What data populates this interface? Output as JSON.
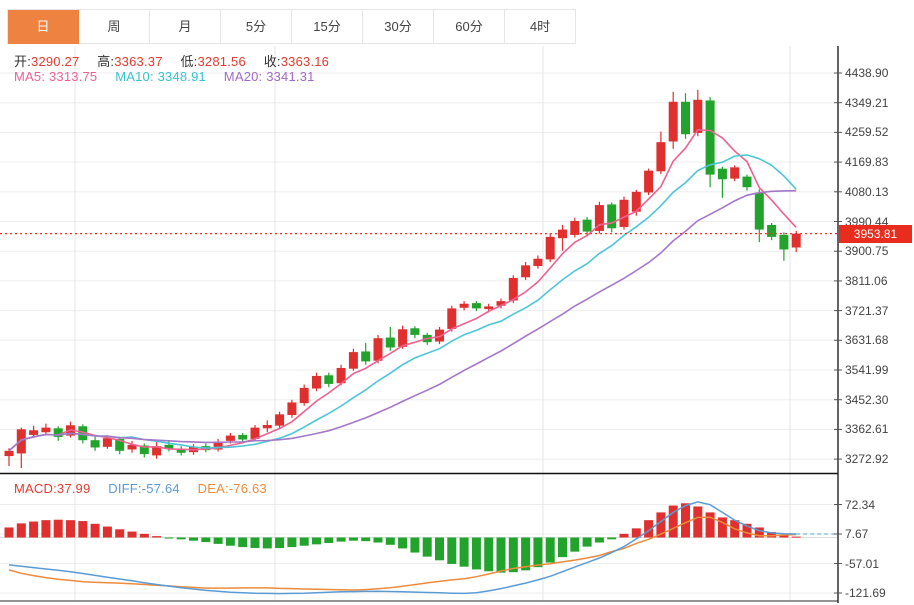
{
  "tabs": {
    "items": [
      {
        "label": "日",
        "active": true
      },
      {
        "label": "周",
        "active": false
      },
      {
        "label": "月",
        "active": false
      },
      {
        "label": "5分",
        "active": false
      },
      {
        "label": "15分",
        "active": false
      },
      {
        "label": "30分",
        "active": false
      },
      {
        "label": "60分",
        "active": false
      },
      {
        "label": "4时",
        "active": false
      }
    ]
  },
  "main_overlay": {
    "open_label": "开:",
    "open": "3290.27",
    "high_label": "高:",
    "high": "3363.37",
    "low_label": "低:",
    "low": "3281.56",
    "close_label": "收:",
    "close": "3363.16"
  },
  "ma_overlay": {
    "ma5_label": "MA5:",
    "ma5": "3313.75",
    "ma10_label": "MA10:",
    "ma10": "3348.91",
    "ma20_label": "MA20:",
    "ma20": "3341.31"
  },
  "macd_overlay": {
    "macd_label": "MACD:",
    "macd": "37.99",
    "diff_label": "DIFF:",
    "diff": "-57.64",
    "dea_label": "DEA:",
    "dea": "-76.63"
  },
  "price_axis": {
    "labels": [
      "4438.90",
      "4349.21",
      "4259.52",
      "4169.83",
      "4080.13",
      "3990.44",
      "3900.75",
      "3811.06",
      "3721.37",
      "3631.68",
      "3541.99",
      "3452.30",
      "3362.61",
      "3272.92"
    ]
  },
  "macd_axis": {
    "labels": [
      "72.34",
      "7.67",
      "-57.01",
      "-121.69"
    ]
  },
  "price_line": {
    "value": "3953.81"
  },
  "colors": {
    "up": "#df2f2f",
    "down": "#22a42c",
    "ma5": "#ec6390",
    "ma10": "#4cc6d8",
    "ma20": "#a577c8",
    "diff": "#5b9bd5",
    "dea": "#ed8b3a",
    "diff_dash": "#6db9e0",
    "price_line": "#ff2a2a",
    "badge_bg": "#e82c1e",
    "grid": "#ededed",
    "vgrid": "#e4e4e4",
    "axis": "#222",
    "tab_active": "#ee8240"
  },
  "chart_data": {
    "type": "candlestick+macd",
    "note": "65 daily candles, values estimated from pixels; red=up green=down (CN convention)",
    "price_ticks": [
      4438.9,
      4349.21,
      4259.52,
      4169.83,
      4080.13,
      3990.44,
      3900.75,
      3811.06,
      3721.37,
      3631.68,
      3541.99,
      3452.3,
      3362.61,
      3272.92
    ],
    "macd_ticks": [
      72.34,
      7.67,
      -57.01,
      -121.69
    ],
    "last_price": 3953.81,
    "ma_periods": [
      5,
      10,
      20
    ],
    "ohlc": [
      [
        3282,
        3306,
        3252,
        3298
      ],
      [
        3290,
        3368,
        3246,
        3363
      ],
      [
        3346,
        3374,
        3336,
        3360
      ],
      [
        3354,
        3380,
        3344,
        3368
      ],
      [
        3366,
        3372,
        3328,
        3340
      ],
      [
        3344,
        3386,
        3338,
        3375
      ],
      [
        3372,
        3378,
        3320,
        3330
      ],
      [
        3330,
        3342,
        3298,
        3308
      ],
      [
        3310,
        3345,
        3304,
        3336
      ],
      [
        3334,
        3340,
        3288,
        3298
      ],
      [
        3302,
        3328,
        3292,
        3316
      ],
      [
        3314,
        3320,
        3278,
        3288
      ],
      [
        3284,
        3324,
        3274,
        3312
      ],
      [
        3316,
        3328,
        3296,
        3304
      ],
      [
        3304,
        3312,
        3284,
        3292
      ],
      [
        3294,
        3318,
        3286,
        3310
      ],
      [
        3312,
        3320,
        3294,
        3300
      ],
      [
        3302,
        3334,
        3296,
        3326
      ],
      [
        3328,
        3352,
        3320,
        3344
      ],
      [
        3346,
        3352,
        3324,
        3332
      ],
      [
        3334,
        3376,
        3328,
        3368
      ],
      [
        3366,
        3390,
        3354,
        3376
      ],
      [
        3374,
        3416,
        3366,
        3408
      ],
      [
        3406,
        3452,
        3398,
        3444
      ],
      [
        3442,
        3498,
        3434,
        3488
      ],
      [
        3486,
        3534,
        3478,
        3524
      ],
      [
        3526,
        3534,
        3490,
        3500
      ],
      [
        3502,
        3558,
        3496,
        3548
      ],
      [
        3546,
        3606,
        3540,
        3596
      ],
      [
        3598,
        3624,
        3558,
        3568
      ],
      [
        3570,
        3648,
        3562,
        3638
      ],
      [
        3640,
        3672,
        3600,
        3610
      ],
      [
        3612,
        3676,
        3606,
        3665
      ],
      [
        3668,
        3674,
        3638,
        3648
      ],
      [
        3648,
        3654,
        3618,
        3626
      ],
      [
        3628,
        3672,
        3620,
        3664
      ],
      [
        3666,
        3736,
        3658,
        3728
      ],
      [
        3730,
        3750,
        3722,
        3742
      ],
      [
        3744,
        3750,
        3720,
        3728
      ],
      [
        3726,
        3742,
        3716,
        3734
      ],
      [
        3736,
        3758,
        3728,
        3750
      ],
      [
        3752,
        3828,
        3744,
        3820
      ],
      [
        3822,
        3868,
        3814,
        3858
      ],
      [
        3856,
        3888,
        3848,
        3878
      ],
      [
        3876,
        3956,
        3868,
        3944
      ],
      [
        3940,
        3980,
        3902,
        3966
      ],
      [
        3950,
        4002,
        3942,
        3992
      ],
      [
        3996,
        4004,
        3950,
        3960
      ],
      [
        3962,
        4050,
        3954,
        4040
      ],
      [
        4042,
        4048,
        3958,
        3970
      ],
      [
        3974,
        4066,
        3966,
        4056
      ],
      [
        4020,
        4086,
        4008,
        4080
      ],
      [
        4078,
        4150,
        4070,
        4144
      ],
      [
        4142,
        4262,
        4134,
        4230
      ],
      [
        4232,
        4382,
        4210,
        4352
      ],
      [
        4352,
        4378,
        4240,
        4254
      ],
      [
        4258,
        4388,
        4248,
        4358
      ],
      [
        4356,
        4366,
        4094,
        4132
      ],
      [
        4150,
        4156,
        4062,
        4118
      ],
      [
        4120,
        4160,
        4112,
        4154
      ],
      [
        4126,
        4132,
        4084,
        4094
      ],
      [
        4078,
        4088,
        3928,
        3966
      ],
      [
        3980,
        3986,
        3934,
        3944
      ],
      [
        3950,
        3958,
        3872,
        3906
      ],
      [
        3912,
        3962,
        3898,
        3953.81
      ]
    ],
    "macd_hist": [
      22,
      31,
      35,
      38,
      39,
      38,
      36,
      30,
      24,
      18,
      13,
      8,
      3,
      -1,
      -4,
      -7,
      -10,
      -14,
      -18,
      -21,
      -23,
      -24,
      -23,
      -21,
      -18,
      -15,
      -12,
      -9,
      -7,
      -8,
      -11,
      -16,
      -24,
      -33,
      -42,
      -50,
      -58,
      -64,
      -70,
      -74,
      -77,
      -76,
      -72,
      -65,
      -55,
      -43,
      -31,
      -20,
      -11,
      -4,
      8,
      20,
      38,
      55,
      70,
      75,
      68,
      55,
      44,
      38,
      30,
      22,
      12,
      5,
      2
    ],
    "macd_diff": [
      -60,
      -63,
      -66,
      -69,
      -72,
      -75,
      -79,
      -83,
      -87,
      -91,
      -95,
      -99,
      -103,
      -106.5,
      -110,
      -113,
      -116,
      -118,
      -120,
      -121,
      -122,
      -122.5,
      -123,
      -122.5,
      -122,
      -121,
      -120,
      -119,
      -118.5,
      -118.2,
      -118,
      -118.3,
      -119,
      -119.7,
      -120.5,
      -121.2,
      -122,
      -122.5,
      -121,
      -117,
      -112,
      -106,
      -100,
      -93,
      -85,
      -75,
      -65,
      -55,
      -45,
      -33,
      -20,
      -3,
      15,
      35,
      55,
      70,
      78,
      72,
      55,
      38,
      25,
      15,
      10,
      8,
      7.67
    ],
    "dea_rule": "dea[i] = diff[i] - hist[i]/2"
  }
}
